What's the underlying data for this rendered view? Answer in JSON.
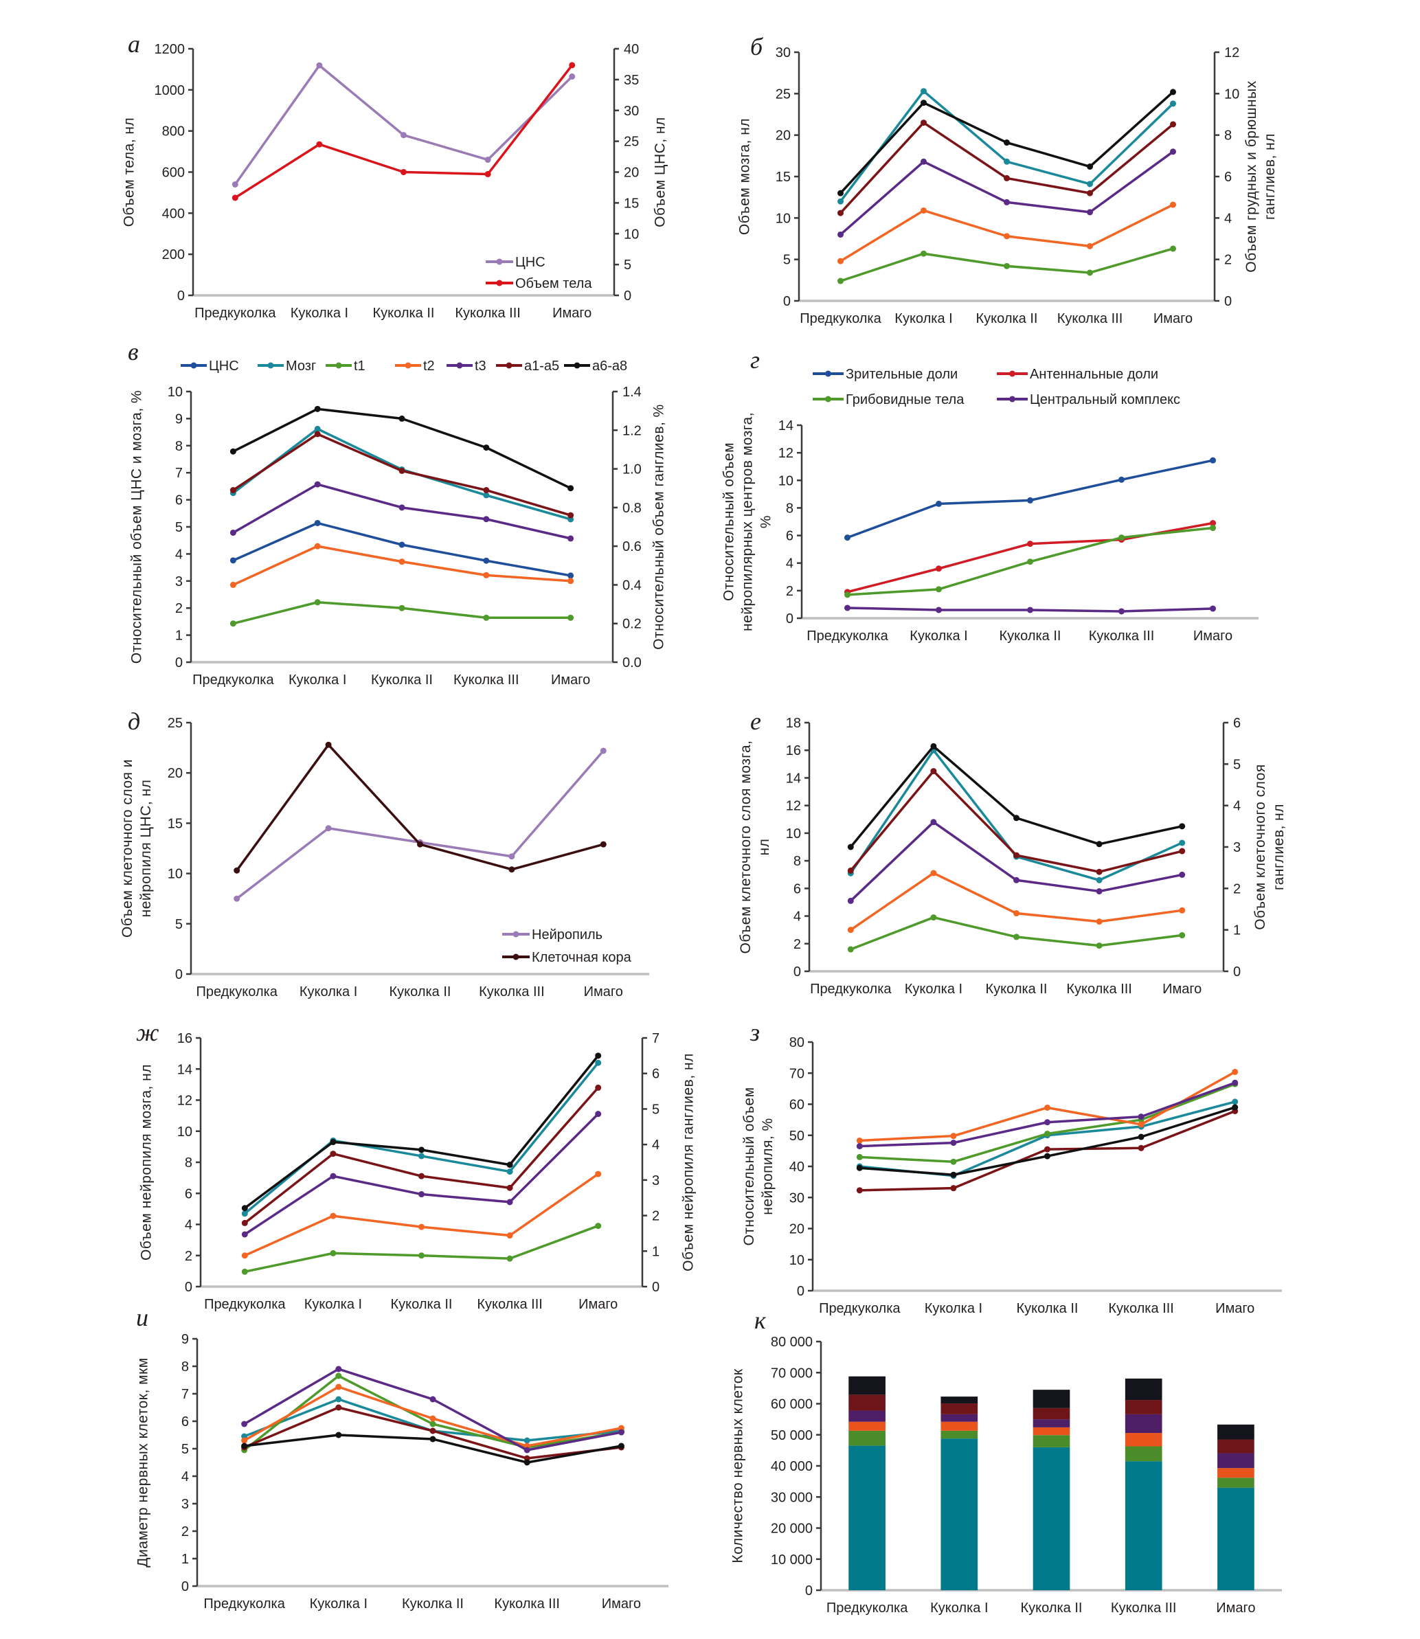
{
  "categories": [
    "Предкуколка",
    "Куколка I",
    "Куколка II",
    "Куколка III",
    "Имаго"
  ],
  "chart_data": [
    {
      "letter": "а",
      "type": "line",
      "ylabel": [
        "Объем тела, нл"
      ],
      "y2label": [
        "Объем ЦНС, нл"
      ],
      "ylim": [
        0,
        1200
      ],
      "yticks": [
        "0",
        "200",
        "400",
        "600",
        "800",
        "1000",
        "1200"
      ],
      "y2lim": [
        0,
        40
      ],
      "y2ticks": [
        "0",
        "5",
        "10",
        "15",
        "20",
        "25",
        "30",
        "35",
        "40"
      ],
      "legend": "bottom-right",
      "series": [
        {
          "name": "ЦНС",
          "color": "#9b7bb5",
          "axis": "right",
          "values": [
            18,
            37.3,
            26,
            22,
            35.5
          ]
        },
        {
          "name": "Объем тела",
          "color": "#d9141b",
          "axis": "left",
          "values": [
            475,
            735,
            600,
            590,
            1120
          ]
        }
      ]
    },
    {
      "letter": "б",
      "type": "line",
      "ylabel": [
        "Объем мозга, нл"
      ],
      "y2label": [
        "Объем грудных и брюшных",
        "ганглиев, нл"
      ],
      "ylim": [
        0,
        30
      ],
      "yticks": [
        "0",
        "5",
        "10",
        "15",
        "20",
        "25",
        "30"
      ],
      "y2lim": [
        0,
        12
      ],
      "y2ticks": [
        "0",
        "2",
        "4",
        "6",
        "8",
        "10",
        "12"
      ],
      "series": [
        {
          "color": "#1a8a9a",
          "axis": "left",
          "values": [
            12,
            25.3,
            16.8,
            14.1,
            23.8
          ]
        },
        {
          "color": "#4e9a2a",
          "axis": "right",
          "values": [
            0.96,
            2.28,
            1.68,
            1.36,
            2.52
          ]
        },
        {
          "color": "#f26522",
          "axis": "right",
          "values": [
            1.92,
            4.36,
            3.12,
            2.64,
            4.64
          ]
        },
        {
          "color": "#5b2a86",
          "axis": "right",
          "values": [
            3.2,
            6.72,
            4.76,
            4.28,
            7.2
          ]
        },
        {
          "color": "#7b1416",
          "axis": "right",
          "values": [
            4.24,
            8.6,
            5.92,
            5.2,
            8.52
          ]
        },
        {
          "color": "#111111",
          "axis": "right",
          "values": [
            5.2,
            9.56,
            7.64,
            6.48,
            10.08
          ]
        }
      ]
    },
    {
      "letter": "в",
      "type": "line",
      "ylabel": [
        "Относительный объем ЦНС и мозга, %"
      ],
      "y2label": [
        "Относительный объем ганглиев, %"
      ],
      "ylim": [
        0,
        10
      ],
      "yticks": [
        "0",
        "1",
        "2",
        "3",
        "4",
        "5",
        "6",
        "7",
        "8",
        "9",
        "10"
      ],
      "y2lim": [
        0,
        1.4
      ],
      "y2ticks": [
        "0.0",
        "0.2",
        "0.4",
        "0.6",
        "0.8",
        "1.0",
        "1.2",
        "1.4"
      ],
      "legend": "top",
      "series": [
        {
          "name": "ЦНС",
          "color": "#1f4e9a",
          "axis": "left",
          "values": [
            3.76,
            5.14,
            4.34,
            3.75,
            3.2
          ]
        },
        {
          "name": "Мозг",
          "color": "#1a8a9a",
          "axis": "left",
          "values": [
            6.25,
            8.62,
            7.12,
            6.17,
            5.28
          ]
        },
        {
          "name": "t1",
          "color": "#4e9a2a",
          "axis": "right",
          "values": [
            0.2,
            0.31,
            0.28,
            0.23,
            0.23
          ]
        },
        {
          "name": "t2",
          "color": "#f26522",
          "axis": "right",
          "values": [
            0.4,
            0.6,
            0.52,
            0.45,
            0.42
          ]
        },
        {
          "name": "t3",
          "color": "#5b2a86",
          "axis": "right",
          "values": [
            0.67,
            0.92,
            0.8,
            0.74,
            0.64
          ]
        },
        {
          "name": "a1-a5",
          "color": "#7b1416",
          "axis": "right",
          "values": [
            0.89,
            1.18,
            0.99,
            0.89,
            0.76
          ]
        },
        {
          "name": "a6-a8",
          "color": "#111111",
          "axis": "right",
          "values": [
            1.09,
            1.31,
            1.26,
            1.11,
            0.9
          ]
        }
      ]
    },
    {
      "letter": "г",
      "type": "line",
      "ylabel": [
        "Относительный объем",
        "нейропилярных центров мозга,",
        "%"
      ],
      "ylim": [
        0,
        14
      ],
      "yticks": [
        "0",
        "2",
        "4",
        "6",
        "8",
        "10",
        "12",
        "14"
      ],
      "legend": "top",
      "series": [
        {
          "name": "Зрительные доли",
          "color": "#1f4e9a",
          "axis": "left",
          "values": [
            5.85,
            8.3,
            8.55,
            10.05,
            11.45
          ]
        },
        {
          "name": "Антеннальные доли",
          "color": "#d01c24",
          "axis": "left",
          "values": [
            1.9,
            3.6,
            5.4,
            5.7,
            6.9
          ]
        },
        {
          "name": "Грибовидные тела",
          "color": "#4e9a2a",
          "axis": "left",
          "values": [
            1.7,
            2.1,
            4.1,
            5.85,
            6.55
          ]
        },
        {
          "name": "Центральный комплекс",
          "color": "#5b2a86",
          "axis": "left",
          "values": [
            0.75,
            0.6,
            0.6,
            0.5,
            0.7
          ]
        }
      ]
    },
    {
      "letter": "д",
      "type": "line",
      "ylabel": [
        "Объем клеточного слоя и",
        "нейропиля ЦНС, нл"
      ],
      "ylim": [
        0,
        25
      ],
      "yticks": [
        "0",
        "5",
        "10",
        "15",
        "20",
        "25"
      ],
      "legend": "bottom-right",
      "series": [
        {
          "name": "Нейропиль",
          "color": "#9b7bb5",
          "axis": "left",
          "values": [
            7.5,
            14.5,
            13.1,
            11.7,
            22.2
          ]
        },
        {
          "name": "Клеточная кора",
          "color": "#3b0f0f",
          "axis": "left",
          "values": [
            10.3,
            22.8,
            12.9,
            10.4,
            12.9
          ]
        }
      ]
    },
    {
      "letter": "е",
      "type": "line",
      "ylabel": [
        "Объем клеточного слоя мозга,",
        "нл"
      ],
      "y2label": [
        "Объем клеточного слоя",
        "ганглиев, нл"
      ],
      "ylim": [
        0,
        18
      ],
      "yticks": [
        "0",
        "2",
        "4",
        "6",
        "8",
        "10",
        "12",
        "14",
        "16",
        "18"
      ],
      "y2lim": [
        0,
        6
      ],
      "y2ticks": [
        "0",
        "1",
        "2",
        "3",
        "4",
        "5",
        "6"
      ],
      "series": [
        {
          "color": "#1a8a9a",
          "axis": "left",
          "values": [
            7.1,
            16.0,
            8.3,
            6.6,
            9.3
          ]
        },
        {
          "color": "#4e9a2a",
          "axis": "right",
          "values": [
            0.53,
            1.3,
            0.83,
            0.62,
            0.87
          ]
        },
        {
          "color": "#f26522",
          "axis": "right",
          "values": [
            1.0,
            2.37,
            1.4,
            1.2,
            1.47
          ]
        },
        {
          "color": "#5b2a86",
          "axis": "right",
          "values": [
            1.7,
            3.6,
            2.2,
            1.93,
            2.33
          ]
        },
        {
          "color": "#7b1416",
          "axis": "right",
          "values": [
            2.43,
            4.83,
            2.8,
            2.4,
            2.9
          ]
        },
        {
          "color": "#111111",
          "axis": "right",
          "values": [
            3.0,
            5.43,
            3.7,
            3.07,
            3.5
          ]
        }
      ]
    },
    {
      "letter": "ж",
      "type": "line",
      "ylabel": [
        "Объем нейропиля мозга, нл"
      ],
      "y2label": [
        "Объем нейропиля ганглиев, нл"
      ],
      "ylim": [
        0,
        16
      ],
      "yticks": [
        "0",
        "2",
        "4",
        "6",
        "8",
        "10",
        "12",
        "14",
        "16"
      ],
      "y2lim": [
        0,
        7
      ],
      "y2ticks": [
        "0",
        "1",
        "2",
        "3",
        "4",
        "5",
        "6",
        "7"
      ],
      "series": [
        {
          "color": "#1a8a9a",
          "axis": "left",
          "values": [
            4.7,
            9.4,
            8.4,
            7.4,
            14.4
          ]
        },
        {
          "color": "#4e9a2a",
          "axis": "right",
          "values": [
            0.42,
            0.94,
            0.875,
            0.79,
            1.71
          ]
        },
        {
          "color": "#f26522",
          "axis": "right",
          "values": [
            0.875,
            1.99,
            1.68,
            1.44,
            3.17
          ]
        },
        {
          "color": "#5b2a86",
          "axis": "right",
          "values": [
            1.47,
            3.11,
            2.6,
            2.38,
            4.86
          ]
        },
        {
          "color": "#7b1416",
          "axis": "right",
          "values": [
            1.79,
            3.74,
            3.11,
            2.78,
            5.6
          ]
        },
        {
          "color": "#111111",
          "axis": "right",
          "values": [
            2.21,
            4.07,
            3.85,
            3.43,
            6.5
          ]
        }
      ]
    },
    {
      "letter": "з",
      "type": "line",
      "ylabel": [
        "Относительный объем",
        "нейропиля, %"
      ],
      "ylim": [
        0,
        80
      ],
      "yticks": [
        "0",
        "10",
        "20",
        "30",
        "40",
        "50",
        "60",
        "70",
        "80"
      ],
      "series": [
        {
          "color": "#1a8a9a",
          "axis": "left",
          "values": [
            40,
            37,
            50,
            52.8,
            60.8
          ]
        },
        {
          "color": "#4e9a2a",
          "axis": "left",
          "values": [
            43,
            41.5,
            50.5,
            55,
            66.5
          ]
        },
        {
          "color": "#f26522",
          "axis": "left",
          "values": [
            48.3,
            49.8,
            58.9,
            53.5,
            70.4
          ]
        },
        {
          "color": "#5b2a86",
          "axis": "left",
          "values": [
            46.5,
            47.6,
            54.2,
            56,
            66.9
          ]
        },
        {
          "color": "#7b1416",
          "axis": "left",
          "values": [
            32.3,
            33,
            45.5,
            45.9,
            57.8
          ]
        },
        {
          "color": "#111111",
          "axis": "left",
          "values": [
            39.5,
            37.3,
            43.3,
            49.5,
            59
          ]
        }
      ]
    },
    {
      "letter": "и",
      "type": "line",
      "ylabel": [
        "Диаметр нервных клеток, мкм"
      ],
      "ylim": [
        0,
        9
      ],
      "yticks": [
        "0",
        "1",
        "2",
        "3",
        "4",
        "5",
        "6",
        "7",
        "8",
        "9"
      ],
      "series": [
        {
          "color": "#1a8a9a",
          "axis": "left",
          "values": [
            5.45,
            6.8,
            5.65,
            5.3,
            5.65
          ]
        },
        {
          "color": "#4e9a2a",
          "axis": "left",
          "values": [
            4.95,
            7.65,
            5.9,
            5.05,
            5.6
          ]
        },
        {
          "color": "#f26522",
          "axis": "left",
          "values": [
            5.3,
            7.25,
            6.1,
            5.1,
            5.75
          ]
        },
        {
          "color": "#5b2a86",
          "axis": "left",
          "values": [
            5.9,
            7.9,
            6.8,
            4.95,
            5.6
          ]
        },
        {
          "color": "#7b1416",
          "axis": "left",
          "values": [
            5.05,
            6.5,
            5.65,
            4.65,
            5.05
          ]
        },
        {
          "color": "#111111",
          "axis": "left",
          "values": [
            5.1,
            5.5,
            5.35,
            4.5,
            5.1
          ]
        }
      ]
    },
    {
      "letter": "к",
      "type": "bar",
      "stacked": true,
      "ylabel": [
        "Количество нервных клеток"
      ],
      "ylim": [
        0,
        80000
      ],
      "yticks": [
        "0",
        "10 000",
        "20 000",
        "30 000",
        "40 000",
        "50 000",
        "60 000",
        "70 000",
        "80 000"
      ],
      "series": [
        {
          "color": "#007a8a",
          "values": [
            46500,
            48800,
            46000,
            41500,
            33000
          ]
        },
        {
          "color": "#4a8c2a",
          "values": [
            4800,
            2500,
            3900,
            4800,
            3200
          ]
        },
        {
          "color": "#e8541c",
          "values": [
            2900,
            2900,
            2500,
            4300,
            3100
          ]
        },
        {
          "color": "#4e1f66",
          "values": [
            3600,
            2400,
            2600,
            6000,
            4800
          ]
        },
        {
          "color": "#6e1519",
          "values": [
            5100,
            3500,
            3600,
            4600,
            4400
          ]
        },
        {
          "color": "#14141c",
          "values": [
            5900,
            2200,
            5900,
            6900,
            4800
          ]
        }
      ]
    }
  ]
}
